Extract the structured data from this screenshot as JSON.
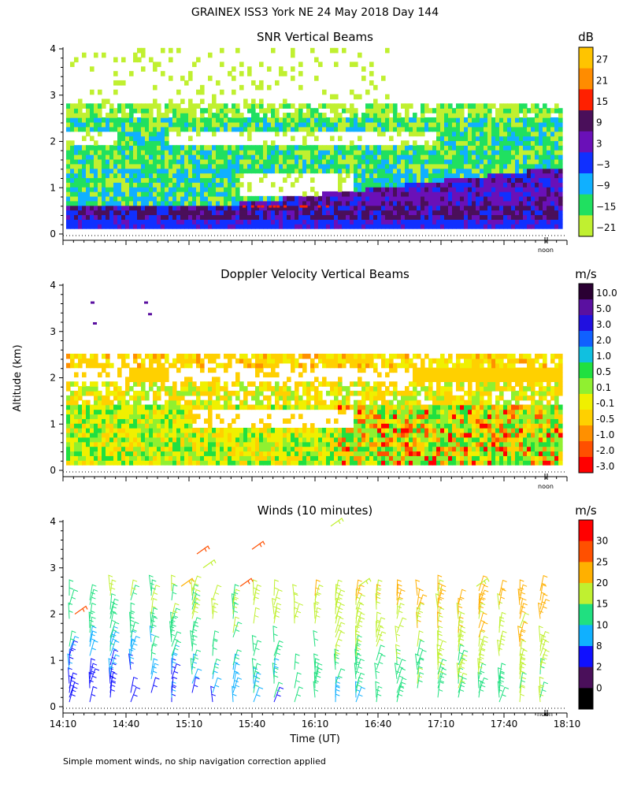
{
  "page": {
    "title": "GRAINEX ISS3 York NE  24 May 2018 Day 144",
    "ylabel": "Altitude (km)",
    "xlabel": "Time (UT)",
    "footnote": "Simple moment winds, no ship navigation correction applied",
    "noon_label": "noon"
  },
  "chart_data": [
    {
      "id": "snr",
      "type": "heatmap",
      "title": "SNR Vertical Beams",
      "xlabel": "",
      "ylabel": "Altitude (km)",
      "xlim": [
        14.1667,
        18.1667
      ],
      "ylim": [
        0,
        4
      ],
      "yticks": [
        "0",
        "1",
        "2",
        "3",
        "4"
      ],
      "colorbar": {
        "unit": "dB",
        "labels": [
          "27",
          "21",
          "15",
          "9",
          "3",
          "−3",
          "−9",
          "−15",
          "−21"
        ],
        "colors": [
          "#ffc400",
          "#ff8c00",
          "#ff2000",
          "#4a0f5a",
          "#6a10b8",
          "#1030ff",
          "#10b0ff",
          "#20e060",
          "#c0f030"
        ]
      },
      "layers": [
        {
          "name": "lowest",
          "ymin": 0.1,
          "ymax": 0.35,
          "color": "#1030ff"
        },
        {
          "name": "strong",
          "ymin": 0.3,
          "ymax": 0.6,
          "color": "#4a0f5a"
        },
        {
          "name": "mid",
          "ymin": 0.6,
          "ymax": 1.4,
          "color": "#10b0ff"
        },
        {
          "name": "upper",
          "ymin": 1.4,
          "ymax": 2.5,
          "color": "#20e060"
        },
        {
          "name": "top",
          "ymin": 2.5,
          "ymax": 4.0,
          "color": "#c0f030"
        }
      ]
    },
    {
      "id": "doppler",
      "type": "heatmap",
      "title": "Doppler Velocity Vertical Beams",
      "xlim": [
        14.1667,
        18.1667
      ],
      "ylim": [
        0,
        4
      ],
      "yticks": [
        "0",
        "1",
        "2",
        "3",
        "4"
      ],
      "colorbar": {
        "unit": "m/s",
        "labels": [
          "10.0",
          "5.0",
          "3.0",
          "2.0",
          "1.0",
          "0.5",
          "0.1",
          "-0.1",
          "-0.5",
          "-1.0",
          "-2.0",
          "-3.0"
        ],
        "colors": [
          "#2a0033",
          "#5a10a0",
          "#2010e0",
          "#1060ff",
          "#10c0e0",
          "#20e040",
          "#90f030",
          "#f0f000",
          "#ffd000",
          "#ff9000",
          "#ff5000",
          "#ff0000"
        ]
      }
    },
    {
      "id": "winds",
      "type": "scatter",
      "title": "Winds (10 minutes)",
      "xlim": [
        14.1667,
        18.1667
      ],
      "ylim": [
        0,
        4
      ],
      "yticks": [
        "0",
        "1",
        "2",
        "3",
        "4"
      ],
      "xticks": [
        "14:10",
        "14:40",
        "15:10",
        "15:40",
        "16:10",
        "16:40",
        "17:10",
        "17:40",
        "18:10"
      ],
      "colorbar": {
        "unit": "m/s",
        "labels": [
          "30",
          "25",
          "20",
          "15",
          "10",
          "8",
          "2",
          "0"
        ],
        "colors": [
          "#ff0000",
          "#ff5000",
          "#ffb000",
          "#c0f030",
          "#20e080",
          "#10b0ff",
          "#1010ff",
          "#4a0f5a",
          "#000000"
        ]
      }
    }
  ]
}
